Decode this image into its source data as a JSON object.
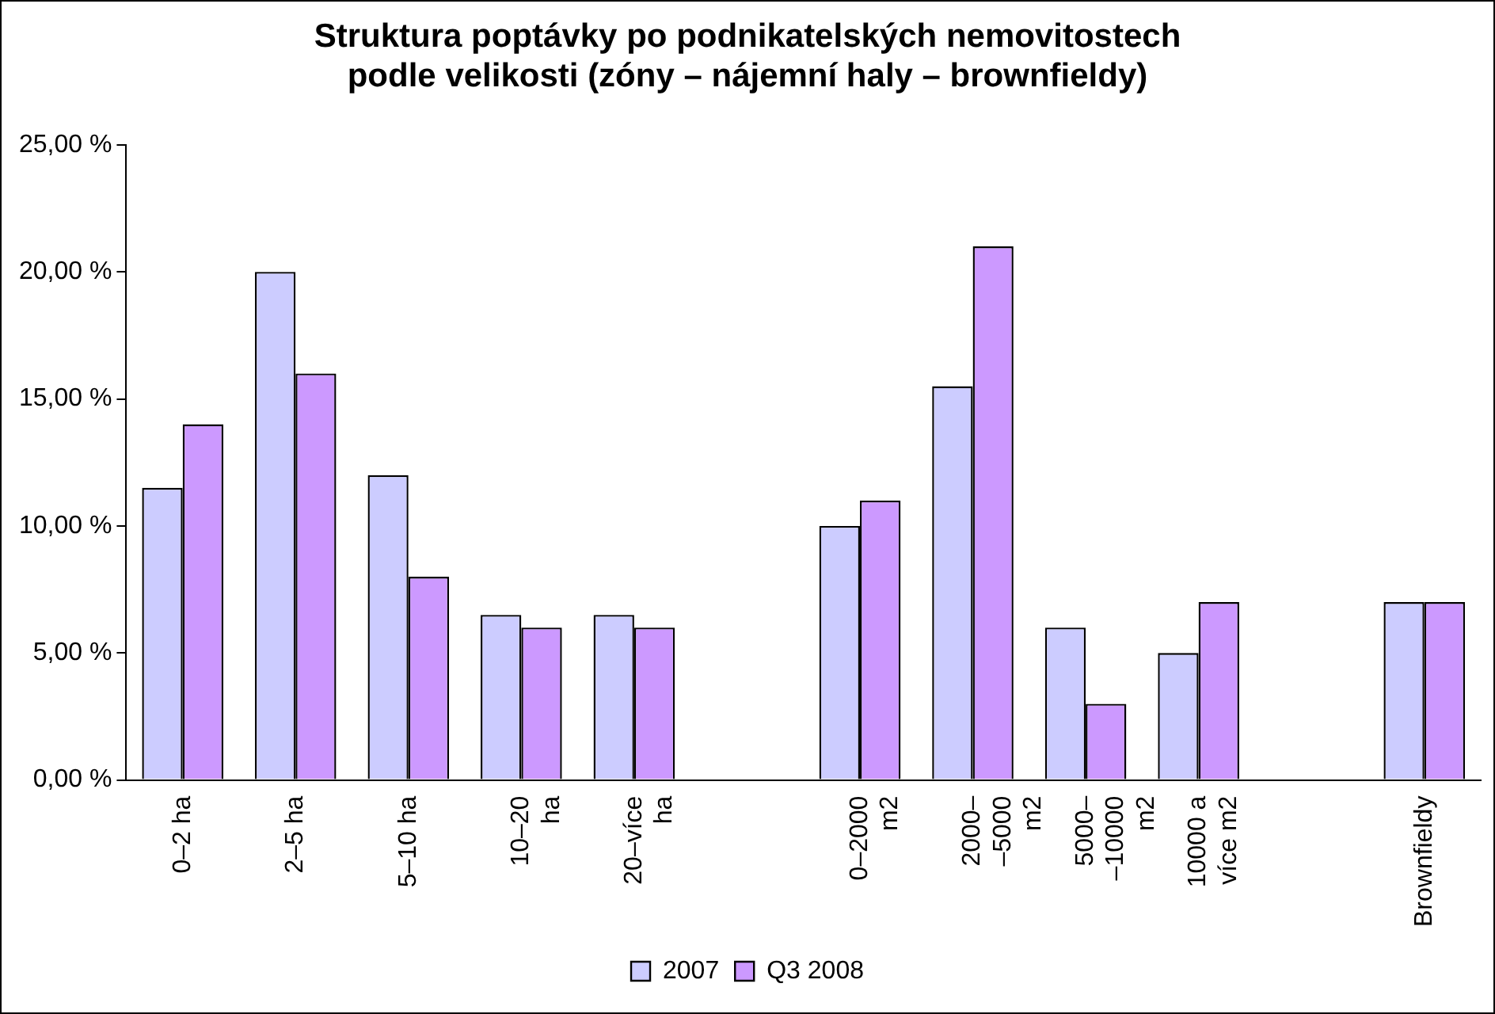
{
  "chart_data": {
    "type": "bar",
    "title": "Struktura poptávky po podnikatelských nemovitostech podle velikosti (zóny – nájemní haly – brownfieldy)",
    "categories": [
      "0–2 ha",
      "2–5 ha",
      "5–10 ha",
      "10–20 ha",
      "20–více ha",
      null,
      "0–2000 m2",
      "2000– –5000 m2",
      "5000– –10000 m2",
      "10000 a více m2",
      null,
      "Brownfieldy"
    ],
    "series": [
      {
        "name": "2007",
        "color": "#ccccff",
        "values": [
          11.5,
          20,
          12,
          6.5,
          6.5,
          null,
          10,
          15.5,
          6,
          5,
          null,
          7
        ]
      },
      {
        "name": "Q3 2008",
        "color": "#cc99ff",
        "values": [
          14,
          16,
          8,
          6,
          6,
          null,
          11,
          21,
          3,
          7,
          null,
          7
        ]
      }
    ],
    "ylim": [
      0,
      25
    ],
    "yticks": [
      {
        "value": 0,
        "label": "0,00 %"
      },
      {
        "value": 5,
        "label": "5,00 %"
      },
      {
        "value": 10,
        "label": "10,00 %"
      },
      {
        "value": 15,
        "label": "15,00 %"
      },
      {
        "value": 20,
        "label": "20,00 %"
      },
      {
        "value": 25,
        "label": "25,00 %"
      }
    ],
    "grid": false,
    "legend": "bottom"
  }
}
